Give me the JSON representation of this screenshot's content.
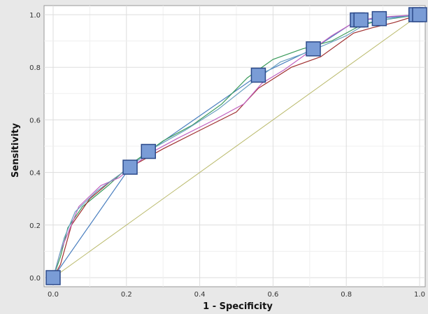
{
  "chart_data": {
    "type": "line",
    "title": "",
    "xlabel": "1 - Specificity",
    "ylabel": "Sensitivity",
    "xlim": [
      0,
      1
    ],
    "ylim": [
      0,
      1
    ],
    "x_ticks": [
      "0.0",
      "0.2",
      "0.4",
      "0.6",
      "0.8",
      "1.0"
    ],
    "y_ticks": [
      "0.0",
      "0.2",
      "0.4",
      "0.6",
      "0.8",
      "1.0"
    ],
    "grid": true,
    "legend": "none",
    "reference_line": {
      "points": [
        [
          0,
          0
        ],
        [
          1,
          1
        ]
      ],
      "color": "#b9b96a"
    },
    "series": [
      {
        "color": "#4a7fbf",
        "marker": "square",
        "points": [
          [
            0,
            0
          ],
          [
            0.21,
            0.42
          ],
          [
            0.26,
            0.48
          ],
          [
            0.56,
            0.77
          ],
          [
            0.71,
            0.87
          ],
          [
            0.83,
            0.98
          ],
          [
            0.84,
            0.98
          ],
          [
            0.89,
            0.985
          ],
          [
            0.99,
            1.0
          ],
          [
            1.0,
            1.0
          ]
        ]
      },
      {
        "color": "#3a9a5a",
        "points": [
          [
            0,
            0
          ],
          [
            0.02,
            0.08
          ],
          [
            0.04,
            0.19
          ],
          [
            0.08,
            0.27
          ],
          [
            0.15,
            0.35
          ],
          [
            0.22,
            0.44
          ],
          [
            0.3,
            0.52
          ],
          [
            0.38,
            0.58
          ],
          [
            0.46,
            0.66
          ],
          [
            0.53,
            0.76
          ],
          [
            0.6,
            0.83
          ],
          [
            0.68,
            0.87
          ],
          [
            0.76,
            0.9
          ],
          [
            0.84,
            0.96
          ],
          [
            0.9,
            0.98
          ],
          [
            1.0,
            1.0
          ]
        ]
      },
      {
        "color": "#a03030",
        "points": [
          [
            0,
            0
          ],
          [
            0.02,
            0.05
          ],
          [
            0.05,
            0.2
          ],
          [
            0.1,
            0.3
          ],
          [
            0.16,
            0.37
          ],
          [
            0.21,
            0.42
          ],
          [
            0.3,
            0.49
          ],
          [
            0.4,
            0.56
          ],
          [
            0.5,
            0.63
          ],
          [
            0.56,
            0.72
          ],
          [
            0.65,
            0.8
          ],
          [
            0.73,
            0.84
          ],
          [
            0.82,
            0.93
          ],
          [
            0.87,
            0.95
          ],
          [
            0.93,
            0.97
          ],
          [
            1.0,
            1.0
          ]
        ]
      },
      {
        "color": "#c060c0",
        "points": [
          [
            0,
            0
          ],
          [
            0.02,
            0.1
          ],
          [
            0.07,
            0.27
          ],
          [
            0.13,
            0.35
          ],
          [
            0.18,
            0.38
          ],
          [
            0.26,
            0.47
          ],
          [
            0.34,
            0.53
          ],
          [
            0.44,
            0.6
          ],
          [
            0.52,
            0.66
          ],
          [
            0.57,
            0.74
          ],
          [
            0.63,
            0.79
          ],
          [
            0.72,
            0.88
          ],
          [
            0.76,
            0.92
          ],
          [
            0.82,
            0.97
          ],
          [
            0.88,
            0.99
          ],
          [
            1.0,
            1.0
          ]
        ]
      },
      {
        "color": "#6aa0c0",
        "points": [
          [
            0,
            0
          ],
          [
            0.03,
            0.15
          ],
          [
            0.06,
            0.25
          ],
          [
            0.12,
            0.33
          ],
          [
            0.2,
            0.41
          ],
          [
            0.27,
            0.49
          ],
          [
            0.36,
            0.56
          ],
          [
            0.45,
            0.64
          ],
          [
            0.55,
            0.75
          ],
          [
            0.62,
            0.82
          ],
          [
            0.7,
            0.86
          ],
          [
            0.8,
            0.92
          ],
          [
            0.86,
            0.97
          ],
          [
            0.94,
            0.99
          ],
          [
            1.0,
            1.0
          ]
        ]
      }
    ]
  }
}
